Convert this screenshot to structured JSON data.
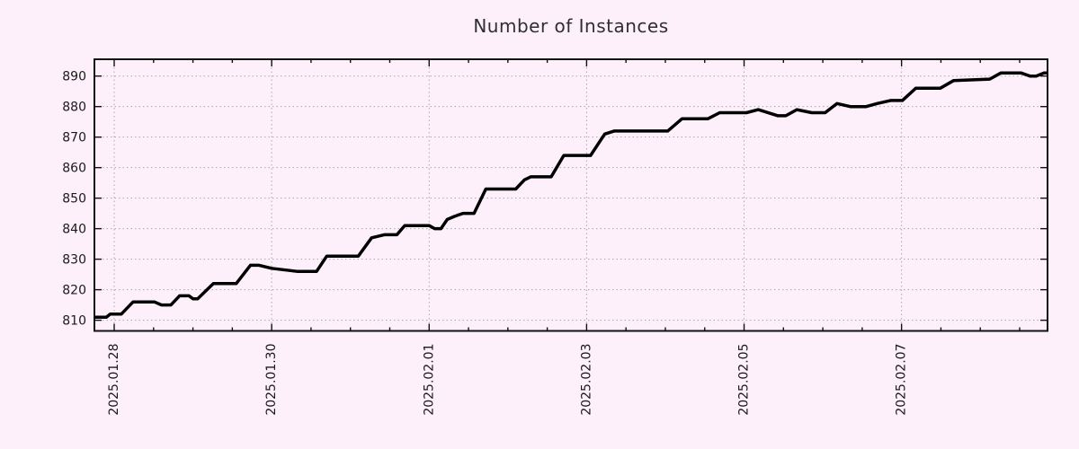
{
  "title": "Number of Instances",
  "colors": {
    "background": "#fdf0fa",
    "grid": "#a8a8a8",
    "axis": "#111111",
    "text": "#1a1a1a",
    "line": "#000000"
  },
  "chart_data": {
    "type": "line",
    "title": "Number of Instances",
    "xlabel": "",
    "ylabel": "",
    "x_unit": "days since 2025-01-28 00:00",
    "xlim": [
      -0.2514,
      11.854
    ],
    "ylim": [
      806.5,
      895.5
    ],
    "grid": "dotted",
    "legend_position": "none",
    "x_ticks": [
      {
        "day": 0,
        "label": "2025.01.28"
      },
      {
        "day": 2,
        "label": "2025.01.30"
      },
      {
        "day": 4,
        "label": "2025.02.01"
      },
      {
        "day": 6,
        "label": "2025.02.03"
      },
      {
        "day": 8,
        "label": "2025.02.05"
      },
      {
        "day": 10,
        "label": "2025.02.07"
      }
    ],
    "minor_x_tick_interval_days": 0.5,
    "y_ticks": [
      810,
      820,
      830,
      840,
      850,
      860,
      870,
      880,
      890
    ],
    "series": [
      {
        "name": "Number of Instances",
        "color": "#000000",
        "points": [
          [
            -0.25,
            811
          ],
          [
            -0.1,
            811
          ],
          [
            -0.05,
            812
          ],
          [
            0.09,
            812
          ],
          [
            0.24,
            816
          ],
          [
            0.51,
            816
          ],
          [
            0.6,
            815
          ],
          [
            0.72,
            815
          ],
          [
            0.83,
            818
          ],
          [
            0.95,
            818
          ],
          [
            1.0,
            817
          ],
          [
            1.06,
            817
          ],
          [
            1.26,
            822
          ],
          [
            1.55,
            822
          ],
          [
            1.73,
            828
          ],
          [
            1.84,
            828
          ],
          [
            2.0,
            827
          ],
          [
            2.32,
            826
          ],
          [
            2.57,
            826
          ],
          [
            2.7,
            831
          ],
          [
            3.1,
            831
          ],
          [
            3.27,
            837
          ],
          [
            3.43,
            838
          ],
          [
            3.59,
            838
          ],
          [
            3.69,
            841
          ],
          [
            4.0,
            841
          ],
          [
            4.07,
            840
          ],
          [
            4.15,
            840
          ],
          [
            4.23,
            843
          ],
          [
            4.32,
            844
          ],
          [
            4.43,
            845
          ],
          [
            4.57,
            845
          ],
          [
            4.72,
            853
          ],
          [
            5.1,
            853
          ],
          [
            5.21,
            856
          ],
          [
            5.29,
            857
          ],
          [
            5.55,
            857
          ],
          [
            5.71,
            864
          ],
          [
            6.05,
            864
          ],
          [
            6.23,
            871
          ],
          [
            6.35,
            872
          ],
          [
            7.03,
            872
          ],
          [
            7.21,
            876
          ],
          [
            7.54,
            876
          ],
          [
            7.69,
            878
          ],
          [
            8.03,
            878
          ],
          [
            8.18,
            879
          ],
          [
            8.43,
            877
          ],
          [
            8.53,
            877
          ],
          [
            8.67,
            879
          ],
          [
            8.86,
            878
          ],
          [
            9.03,
            878
          ],
          [
            9.18,
            881
          ],
          [
            9.35,
            880
          ],
          [
            9.55,
            880
          ],
          [
            9.69,
            881
          ],
          [
            9.86,
            882
          ],
          [
            10.01,
            882
          ],
          [
            10.18,
            886
          ],
          [
            10.49,
            886
          ],
          [
            10.66,
            888.5
          ],
          [
            11.12,
            889
          ],
          [
            11.26,
            891
          ],
          [
            11.52,
            891
          ],
          [
            11.63,
            890
          ],
          [
            11.71,
            890
          ],
          [
            11.81,
            891
          ],
          [
            11.85,
            891
          ]
        ]
      }
    ]
  }
}
